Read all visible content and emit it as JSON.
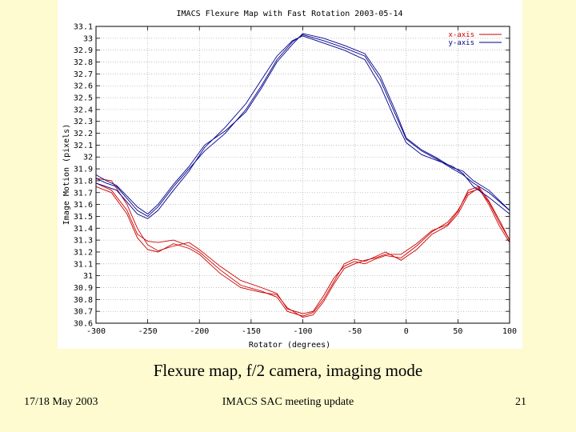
{
  "chart_data": {
    "type": "line",
    "title": "IMACS Flexure Map with Fast Rotation 2003-05-14",
    "xlabel": "Rotator (degrees)",
    "ylabel": "Image Motion (pixels)",
    "xlim": [
      -300,
      100
    ],
    "ylim": [
      30.6,
      33.1
    ],
    "grid": true,
    "legend_position": "top-right",
    "x_ticks": [
      "-300",
      "-250",
      "-200",
      "-150",
      "-100",
      "-50",
      "0",
      "50",
      "100"
    ],
    "y_ticks": [
      "30.6",
      "30.7",
      "30.8",
      "30.9",
      "31",
      "31.1",
      "31.2",
      "31.3",
      "31.4",
      "31.5",
      "31.6",
      "31.7",
      "31.8",
      "31.9",
      "32",
      "32.1",
      "32.2",
      "32.3",
      "32.4",
      "32.5",
      "32.6",
      "32.7",
      "32.8",
      "32.9",
      "33",
      "33.1"
    ],
    "series": [
      {
        "name": "x-axis",
        "color": "#cc0000",
        "runs": [
          [
            [
              -300,
              31.82
            ],
            [
              -285,
              31.8
            ],
            [
              -270,
              31.6
            ],
            [
              -260,
              31.4
            ],
            [
              -250,
              31.26
            ],
            [
              -240,
              31.21
            ],
            [
              -225,
              31.25
            ],
            [
              -210,
              31.28
            ],
            [
              -200,
              31.22
            ],
            [
              -180,
              31.08
            ],
            [
              -160,
              30.96
            ],
            [
              -140,
              30.9
            ],
            [
              -125,
              30.85
            ],
            [
              -115,
              30.72
            ],
            [
              -100,
              30.68
            ],
            [
              -90,
              30.7
            ],
            [
              -80,
              30.83
            ],
            [
              -70,
              30.98
            ],
            [
              -60,
              31.08
            ],
            [
              -50,
              31.12
            ],
            [
              -40,
              31.1
            ],
            [
              -30,
              31.14
            ],
            [
              -20,
              31.17
            ],
            [
              -5,
              31.15
            ],
            [
              10,
              31.25
            ],
            [
              25,
              31.37
            ],
            [
              40,
              31.45
            ],
            [
              50,
              31.55
            ],
            [
              60,
              31.7
            ],
            [
              70,
              31.73
            ],
            [
              80,
              31.62
            ],
            [
              90,
              31.45
            ],
            [
              100,
              31.3
            ]
          ],
          [
            [
              -300,
              31.78
            ],
            [
              -285,
              31.72
            ],
            [
              -270,
              31.55
            ],
            [
              -260,
              31.35
            ],
            [
              -250,
              31.29
            ],
            [
              -240,
              31.28
            ],
            [
              -225,
              31.3
            ],
            [
              -210,
              31.25
            ],
            [
              -200,
              31.2
            ],
            [
              -180,
              31.05
            ],
            [
              -160,
              30.92
            ],
            [
              -140,
              30.87
            ],
            [
              -125,
              30.82
            ],
            [
              -115,
              30.7
            ],
            [
              -100,
              30.66
            ],
            [
              -90,
              30.69
            ],
            [
              -80,
              30.8
            ],
            [
              -70,
              30.95
            ],
            [
              -60,
              31.1
            ],
            [
              -50,
              31.14
            ],
            [
              -40,
              31.12
            ],
            [
              -30,
              31.16
            ],
            [
              -20,
              31.2
            ],
            [
              -5,
              31.13
            ],
            [
              10,
              31.22
            ],
            [
              25,
              31.35
            ],
            [
              40,
              31.42
            ],
            [
              50,
              31.52
            ],
            [
              60,
              31.68
            ],
            [
              70,
              31.74
            ],
            [
              80,
              31.6
            ],
            [
              90,
              31.42
            ],
            [
              100,
              31.28
            ]
          ],
          [
            [
              -300,
              31.75
            ],
            [
              -285,
              31.7
            ],
            [
              -270,
              31.52
            ],
            [
              -260,
              31.32
            ],
            [
              -250,
              31.22
            ],
            [
              -240,
              31.2
            ],
            [
              -225,
              31.27
            ],
            [
              -210,
              31.23
            ],
            [
              -200,
              31.18
            ],
            [
              -180,
              31.02
            ],
            [
              -160,
              30.9
            ],
            [
              -140,
              30.86
            ],
            [
              -125,
              30.84
            ],
            [
              -115,
              30.73
            ],
            [
              -100,
              30.65
            ],
            [
              -90,
              30.67
            ],
            [
              -80,
              30.78
            ],
            [
              -70,
              30.93
            ],
            [
              -60,
              31.06
            ],
            [
              -50,
              31.1
            ],
            [
              -40,
              31.13
            ],
            [
              -30,
              31.15
            ],
            [
              -20,
              31.18
            ],
            [
              -5,
              31.18
            ],
            [
              10,
              31.27
            ],
            [
              25,
              31.38
            ],
            [
              40,
              31.43
            ],
            [
              50,
              31.54
            ],
            [
              60,
              31.72
            ],
            [
              70,
              31.75
            ],
            [
              80,
              31.63
            ],
            [
              90,
              31.47
            ],
            [
              100,
              31.3
            ]
          ]
        ]
      },
      {
        "name": "y-axis",
        "color": "#00008b",
        "runs": [
          [
            [
              -300,
              31.82
            ],
            [
              -290,
              31.78
            ],
            [
              -280,
              31.75
            ],
            [
              -270,
              31.65
            ],
            [
              -260,
              31.55
            ],
            [
              -250,
              31.5
            ],
            [
              -240,
              31.58
            ],
            [
              -225,
              31.75
            ],
            [
              -210,
              31.9
            ],
            [
              -195,
              32.05
            ],
            [
              -175,
              32.2
            ],
            [
              -155,
              32.4
            ],
            [
              -140,
              32.6
            ],
            [
              -125,
              32.82
            ],
            [
              -110,
              32.97
            ],
            [
              -100,
              33.03
            ],
            [
              -80,
              32.98
            ],
            [
              -60,
              32.92
            ],
            [
              -40,
              32.85
            ],
            [
              -25,
              32.65
            ],
            [
              -10,
              32.35
            ],
            [
              0,
              32.15
            ],
            [
              15,
              32.05
            ],
            [
              30,
              31.98
            ],
            [
              45,
              31.9
            ],
            [
              55,
              31.85
            ],
            [
              65,
              31.78
            ],
            [
              80,
              31.7
            ],
            [
              100,
              31.55
            ]
          ],
          [
            [
              -300,
              31.78
            ],
            [
              -290,
              31.75
            ],
            [
              -280,
              31.72
            ],
            [
              -270,
              31.62
            ],
            [
              -260,
              31.52
            ],
            [
              -250,
              31.48
            ],
            [
              -240,
              31.55
            ],
            [
              -225,
              31.72
            ],
            [
              -210,
              31.88
            ],
            [
              -195,
              32.08
            ],
            [
              -175,
              32.25
            ],
            [
              -155,
              32.45
            ],
            [
              -140,
              32.65
            ],
            [
              -125,
              32.85
            ],
            [
              -110,
              32.98
            ],
            [
              -100,
              33.02
            ],
            [
              -80,
              32.96
            ],
            [
              -60,
              32.9
            ],
            [
              -40,
              32.82
            ],
            [
              -25,
              32.6
            ],
            [
              -10,
              32.3
            ],
            [
              0,
              32.12
            ],
            [
              15,
              32.02
            ],
            [
              30,
              31.97
            ],
            [
              45,
              31.92
            ],
            [
              55,
              31.86
            ],
            [
              65,
              31.75
            ],
            [
              80,
              31.66
            ],
            [
              100,
              31.52
            ]
          ],
          [
            [
              -300,
              31.85
            ],
            [
              -290,
              31.8
            ],
            [
              -280,
              31.76
            ],
            [
              -270,
              31.67
            ],
            [
              -260,
              31.58
            ],
            [
              -250,
              31.52
            ],
            [
              -240,
              31.6
            ],
            [
              -225,
              31.77
            ],
            [
              -210,
              31.92
            ],
            [
              -195,
              32.1
            ],
            [
              -175,
              32.22
            ],
            [
              -155,
              32.38
            ],
            [
              -140,
              32.58
            ],
            [
              -125,
              32.8
            ],
            [
              -110,
              32.95
            ],
            [
              -100,
              33.04
            ],
            [
              -80,
              33
            ],
            [
              -60,
              32.94
            ],
            [
              -40,
              32.87
            ],
            [
              -25,
              32.68
            ],
            [
              -10,
              32.38
            ],
            [
              0,
              32.16
            ],
            [
              15,
              32.06
            ],
            [
              30,
              31.99
            ],
            [
              45,
              31.91
            ],
            [
              55,
              31.88
            ],
            [
              65,
              31.8
            ],
            [
              80,
              31.72
            ],
            [
              100,
              31.55
            ]
          ]
        ]
      }
    ]
  },
  "caption": "Flexure map, f/2 camera, imaging mode",
  "footer": {
    "date": "17/18 May 2003",
    "title": "IMACS SAC meeting update",
    "page": "21"
  }
}
